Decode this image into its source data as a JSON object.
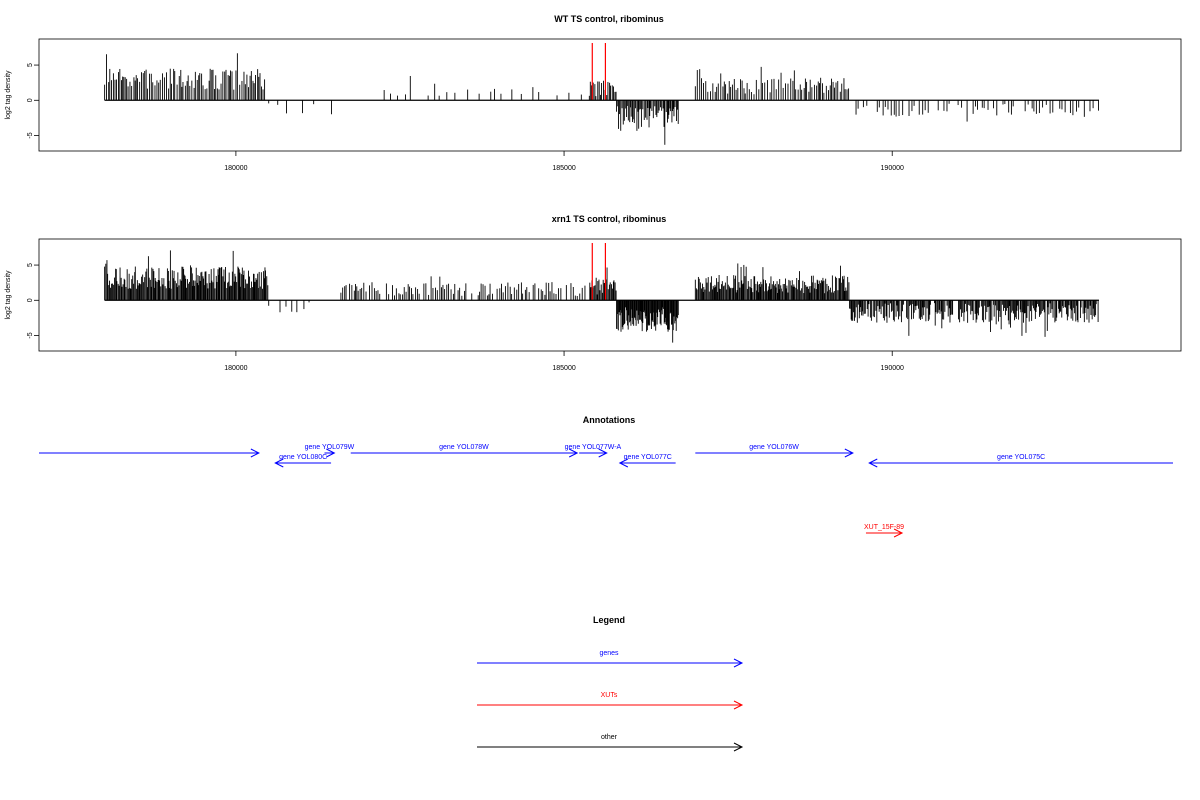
{
  "colors": {
    "genes": "#0000ff",
    "xuts": "#ff0000",
    "other": "#000000",
    "signal": "#000000",
    "marker": "#ff0000"
  },
  "chart_data": [
    {
      "type": "bar",
      "title": "WT TS control, ribominus",
      "ylabel": "log2 tag density",
      "xlim": [
        177000,
        194400
      ],
      "ylim": [
        -7.2,
        8.7
      ],
      "xticks": [
        180000,
        185000,
        190000
      ],
      "xtick_labels": [
        "180000",
        "185000",
        "190000"
      ],
      "yticks": [
        -5,
        0,
        5
      ],
      "ytick_labels": [
        "-5",
        "0",
        "5"
      ],
      "markers": [
        185430,
        185630
      ],
      "seed": 7,
      "segments": [
        {
          "start": 178000,
          "end": 180450,
          "step": 26,
          "amp": 3.0,
          "var": 1.5,
          "sign": 1
        },
        {
          "start": 180500,
          "end": 181500,
          "step": 140,
          "amp": 1.2,
          "var": 0.9,
          "sign": -1,
          "sparse": 0.5
        },
        {
          "start": 181900,
          "end": 185400,
          "step": 90,
          "amp": 1.5,
          "var": 0.9,
          "sign": 1,
          "sparse": 0.35
        },
        {
          "start": 185400,
          "end": 185800,
          "step": 22,
          "amp": 1.7,
          "var": 1.2,
          "sign": 1
        },
        {
          "start": 185800,
          "end": 186750,
          "step": 16,
          "amp": 2.6,
          "var": 1.8,
          "sign": -1
        },
        {
          "start": 187000,
          "end": 189350,
          "step": 30,
          "amp": 2.0,
          "var": 1.2,
          "sign": 1
        },
        {
          "start": 189350,
          "end": 193150,
          "step": 42,
          "amp": 1.4,
          "var": 1.0,
          "sign": -1,
          "sparse": 0.3
        }
      ]
    },
    {
      "type": "bar",
      "title": "xrn1 TS control, ribominus",
      "ylabel": "log2 tag density",
      "xlim": [
        177000,
        194400
      ],
      "ylim": [
        -7.2,
        8.7
      ],
      "xticks": [
        180000,
        185000,
        190000
      ],
      "xtick_labels": [
        "180000",
        "185000",
        "190000"
      ],
      "yticks": [
        -5,
        0,
        5
      ],
      "ytick_labels": [
        "-5",
        "0",
        "5"
      ],
      "markers": [
        185430,
        185630
      ],
      "seed": 19,
      "segments": [
        {
          "start": 178000,
          "end": 180500,
          "step": 14,
          "amp": 3.2,
          "var": 1.6,
          "sign": 1
        },
        {
          "start": 180500,
          "end": 181300,
          "step": 90,
          "amp": 1.2,
          "var": 0.9,
          "sign": -1,
          "sparse": 0.4
        },
        {
          "start": 181600,
          "end": 185400,
          "step": 30,
          "amp": 1.6,
          "var": 1.0,
          "sign": 1,
          "sparse": 0.15
        },
        {
          "start": 185400,
          "end": 185800,
          "step": 14,
          "amp": 2.0,
          "var": 1.2,
          "sign": 1
        },
        {
          "start": 185800,
          "end": 186750,
          "step": 10,
          "amp": 2.8,
          "var": 1.8,
          "sign": -1
        },
        {
          "start": 187000,
          "end": 189350,
          "step": 14,
          "amp": 2.3,
          "var": 1.3,
          "sign": 1
        },
        {
          "start": 189350,
          "end": 193150,
          "step": 14,
          "amp": 1.8,
          "var": 1.4,
          "sign": -1,
          "sparse": 0.1
        }
      ]
    }
  ],
  "annotations": {
    "title": "Annotations",
    "genes": [
      {
        "label": "",
        "start": 177000,
        "end": 180350,
        "strand": "+",
        "row": 0,
        "type": "genes"
      },
      {
        "label": "gene YOL079W",
        "start": 181350,
        "end": 181500,
        "strand": "+",
        "row": 0,
        "type": "genes"
      },
      {
        "label": "gene YOL080C",
        "start": 180600,
        "end": 181450,
        "strand": "-",
        "row": 1,
        "type": "genes"
      },
      {
        "label": "gene YOL078W",
        "start": 181750,
        "end": 185200,
        "strand": "+",
        "row": 0,
        "type": "genes"
      },
      {
        "label": "gene YOL077W-A",
        "start": 185230,
        "end": 185650,
        "strand": "+",
        "row": 0,
        "type": "genes"
      },
      {
        "label": "gene YOL077C",
        "start": 185850,
        "end": 186700,
        "strand": "-",
        "row": 1,
        "type": "genes"
      },
      {
        "label": "gene YOL076W",
        "start": 187000,
        "end": 189400,
        "strand": "+",
        "row": 0,
        "type": "genes"
      },
      {
        "label": "gene YOL075C",
        "start": 189650,
        "end": 194400,
        "strand": "-",
        "row": 1,
        "type": "genes"
      },
      {
        "label": "XUT_15F-89",
        "start": 189600,
        "end": 190150,
        "strand": "+",
        "row": 8,
        "type": "xuts"
      }
    ]
  },
  "legend": {
    "title": "Legend",
    "items": [
      {
        "label": "genes",
        "type": "genes"
      },
      {
        "label": "XUTs",
        "type": "xuts"
      },
      {
        "label": "other",
        "type": "other"
      }
    ]
  }
}
